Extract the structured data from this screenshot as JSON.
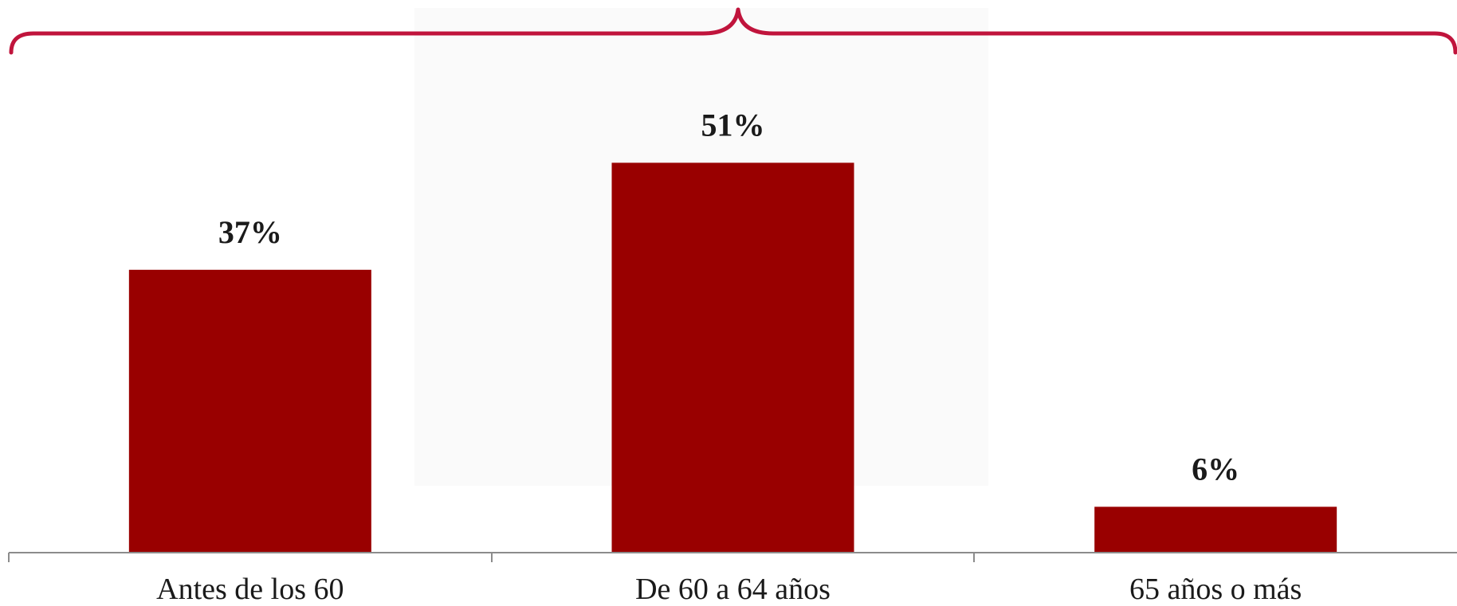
{
  "chart_data": {
    "type": "bar",
    "categories": [
      "Antes de los 60",
      "De 60 a 64 años",
      "65 años o más"
    ],
    "values": [
      37,
      51,
      6
    ],
    "value_labels": [
      "37%",
      "51%",
      "6%"
    ],
    "unit": "%",
    "ylim": [
      0,
      60
    ],
    "grid": false,
    "legend": "none"
  },
  "colors": {
    "bar": "#990000",
    "brace": "#c0143c",
    "axis": "#8c8c8c",
    "text": "#1a1a1a"
  },
  "decorations": {
    "background_watermark": "mexican-coat-of-arms-seal",
    "top_brace": "curly-brace"
  }
}
